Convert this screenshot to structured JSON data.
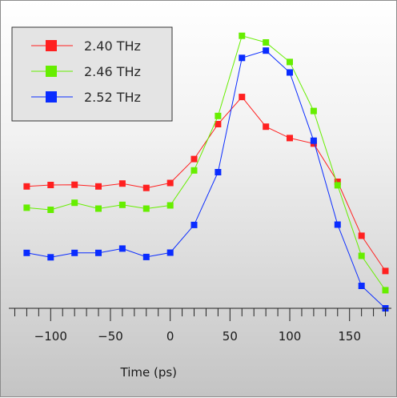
{
  "chart_data": {
    "type": "line",
    "title": "",
    "xlabel": "Time (ps)",
    "ylabel": "",
    "xlim": [
      -135,
      185
    ],
    "ylim": [
      0,
      1
    ],
    "x_ticks_major": [
      -100,
      -50,
      0,
      50,
      100,
      150
    ],
    "x_tick_labels": [
      "−100",
      "−50",
      "0",
      "50",
      "100",
      "150"
    ],
    "x_ticks_minor_step": 10,
    "y_axis_visible": false,
    "grid": false,
    "legend_position": "top-left",
    "x": [
      -120,
      -100,
      -80,
      -60,
      -40,
      -20,
      0,
      20,
      40,
      60,
      80,
      100,
      120,
      140,
      160,
      180
    ],
    "series": [
      {
        "name": "2.40 THz",
        "color": "#ff2020",
        "values": [
          0.418,
          0.423,
          0.424,
          0.418,
          0.428,
          0.413,
          0.43,
          0.512,
          0.632,
          0.725,
          0.623,
          0.584,
          0.565,
          0.434,
          0.249,
          0.128
        ]
      },
      {
        "name": "2.46 THz",
        "color": "#66ee00",
        "values": [
          0.345,
          0.338,
          0.362,
          0.342,
          0.355,
          0.342,
          0.353,
          0.473,
          0.66,
          0.935,
          0.912,
          0.845,
          0.677,
          0.422,
          0.18,
          0.062
        ]
      },
      {
        "name": "2.52 THz",
        "color": "#0a2cff",
        "values": [
          0.19,
          0.175,
          0.19,
          0.19,
          0.205,
          0.176,
          0.191,
          0.286,
          0.467,
          0.859,
          0.884,
          0.809,
          0.575,
          0.287,
          0.077,
          0.0
        ]
      }
    ]
  }
}
